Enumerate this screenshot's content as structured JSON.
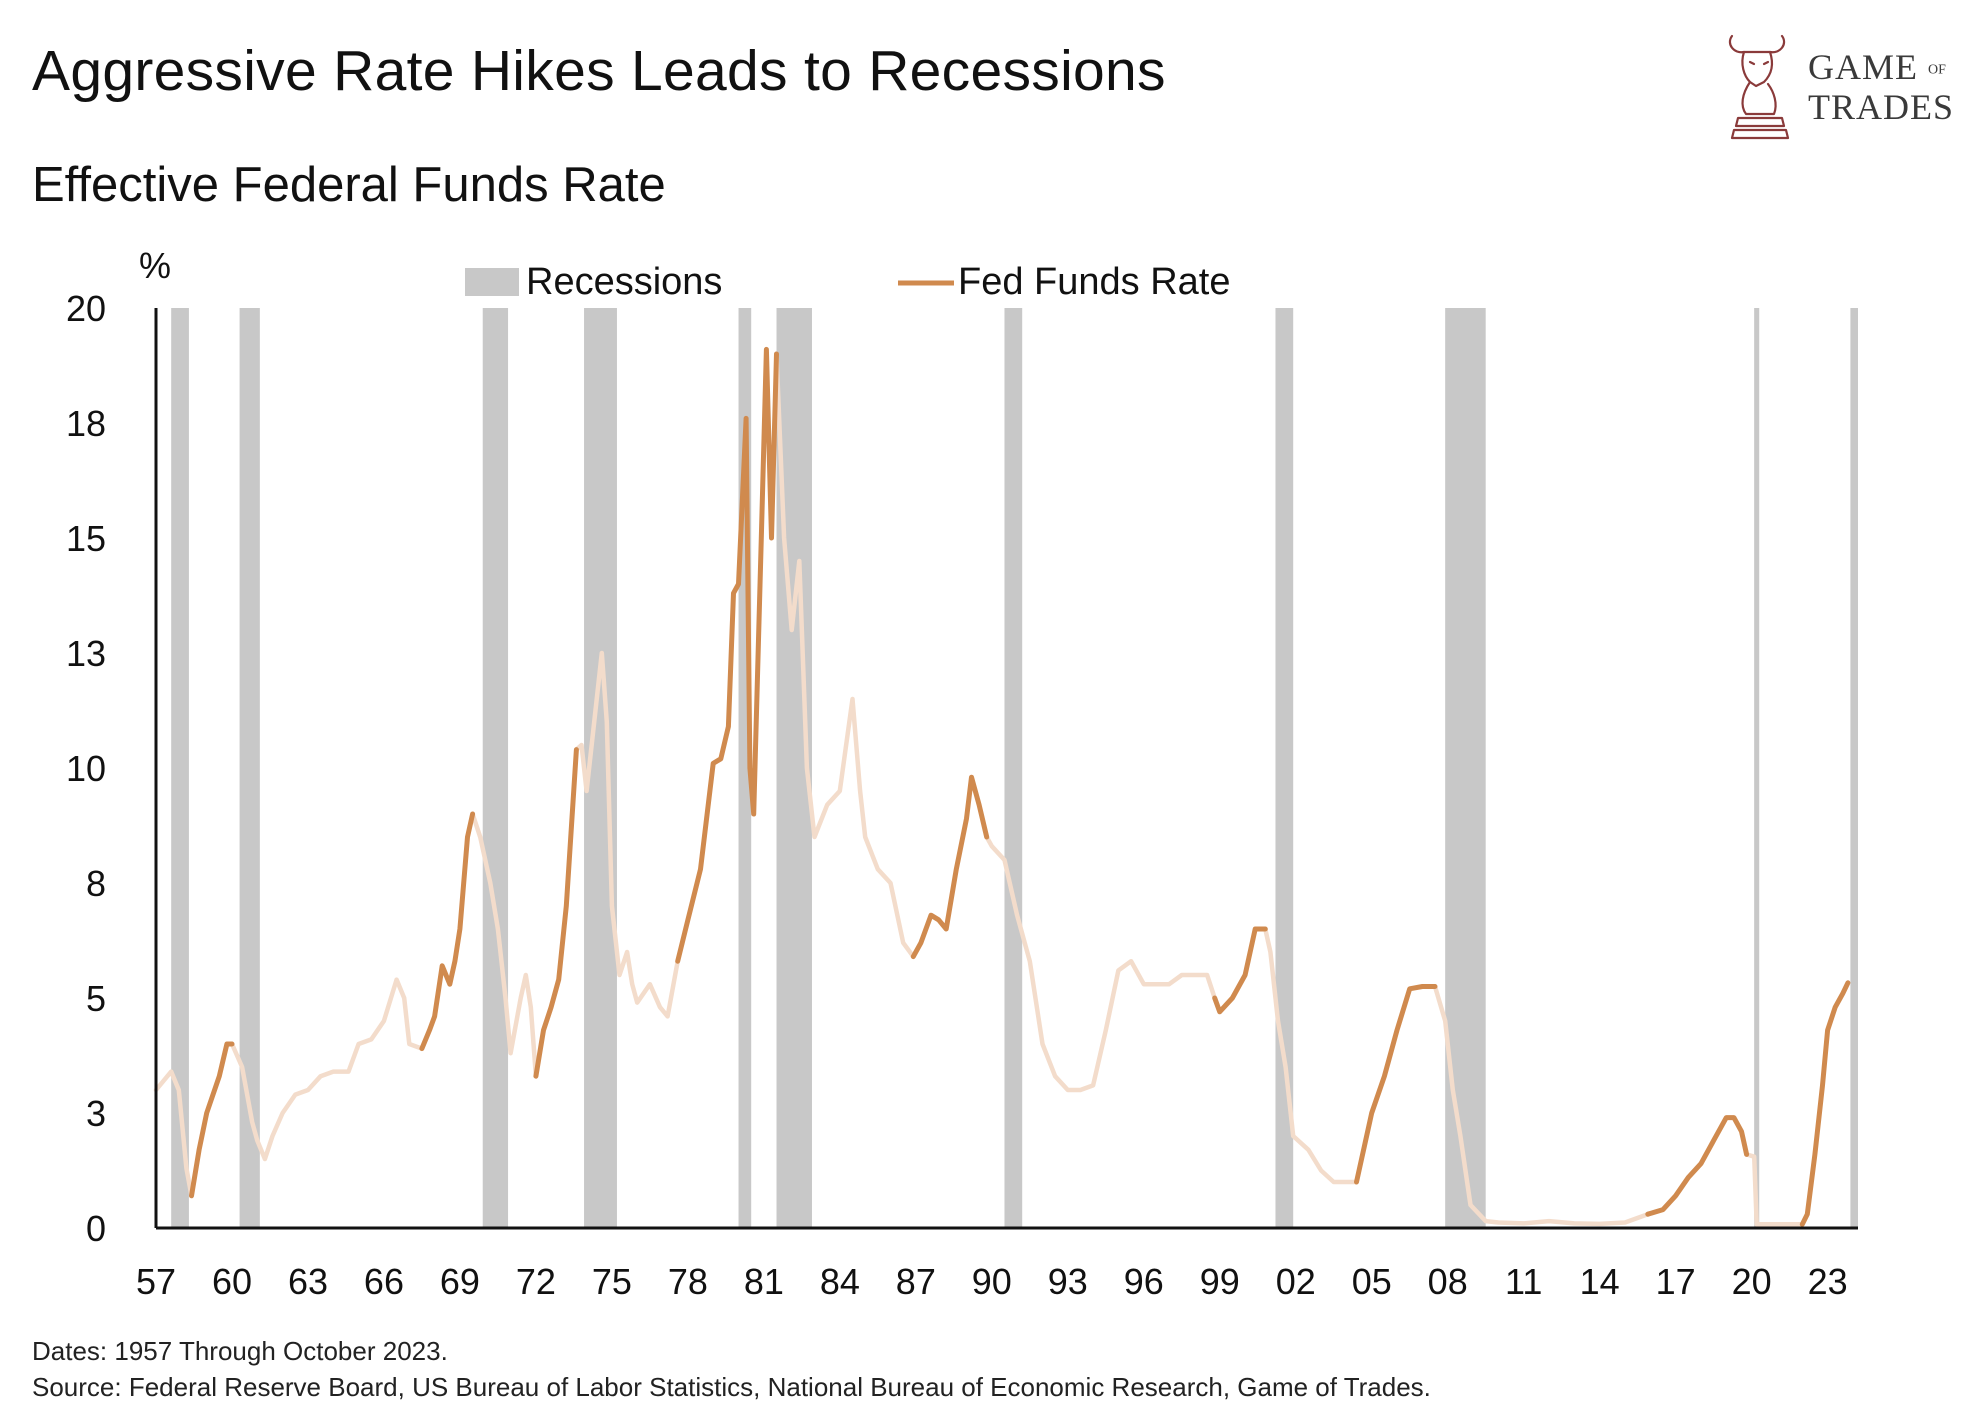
{
  "header": {
    "title": "Aggressive Rate Hikes Leads to Recessions",
    "subtitle": "Effective Federal Funds Rate"
  },
  "logo": {
    "line1": "GAME",
    "line1_small": "OF",
    "line2": "TRADES",
    "icon": "bull-chess-knight-icon",
    "color": "#8a3a3a"
  },
  "footer": {
    "dates_note": "Dates: 1957 Through October 2023.",
    "source_note": "Source: Federal Reserve Board, US Bureau of Labor Statistics, National Bureau of Economic Research, Game of Trades."
  },
  "chart_data": {
    "type": "line",
    "title": "Effective Federal Funds Rate",
    "ylabel": "%",
    "xlabel": "",
    "xlim": [
      1957,
      2024.2
    ],
    "ylim": [
      0,
      20
    ],
    "x_tick_labels": [
      "57",
      "60",
      "63",
      "66",
      "69",
      "72",
      "75",
      "78",
      "81",
      "84",
      "87",
      "90",
      "93",
      "96",
      "99",
      "02",
      "05",
      "08",
      "11",
      "14",
      "17",
      "20",
      "23"
    ],
    "x_tick_values": [
      1957,
      1960,
      1963,
      1966,
      1969,
      1972,
      1975,
      1978,
      1981,
      1984,
      1987,
      1990,
      1993,
      1996,
      1999,
      2002,
      2005,
      2008,
      2011,
      2014,
      2017,
      2020,
      2023
    ],
    "y_tick_labels": [
      "0",
      "3",
      "5",
      "8",
      "10",
      "13",
      "15",
      "18",
      "20"
    ],
    "y_tick_values": [
      0,
      2.5,
      5,
      7.5,
      10,
      12.5,
      15,
      17.5,
      20
    ],
    "grid": false,
    "legend": {
      "placement": "top",
      "entries": [
        {
          "label": "Recessions",
          "type": "band",
          "color": "#c8c8c8"
        },
        {
          "label": "Fed Funds Rate",
          "type": "line",
          "color": "#d08a4e"
        }
      ]
    },
    "colors": {
      "hike": "#d08a4e",
      "other": "#f3dccb",
      "recession": "#c8c8c8"
    },
    "recessions": [
      [
        1957.6,
        1958.3
      ],
      [
        1960.3,
        1961.1
      ],
      [
        1969.9,
        1970.9
      ],
      [
        1973.9,
        1975.2
      ],
      [
        1980.0,
        1980.5
      ],
      [
        1981.5,
        1982.9
      ],
      [
        1990.5,
        1991.2
      ],
      [
        2001.2,
        2001.9
      ],
      [
        2007.9,
        2009.5
      ],
      [
        2020.1,
        2020.3
      ],
      [
        2023.9,
        2024.2
      ]
    ],
    "series": [
      {
        "name": "Fed Funds Rate",
        "points": [
          [
            1957.0,
            3.0
          ],
          [
            1957.6,
            3.4
          ],
          [
            1957.9,
            3.0
          ],
          [
            1958.2,
            1.3
          ],
          [
            1958.4,
            0.7
          ],
          [
            1958.7,
            1.7
          ],
          [
            1959.0,
            2.5
          ],
          [
            1959.5,
            3.3
          ],
          [
            1959.8,
            4.0
          ],
          [
            1960.0,
            4.0
          ],
          [
            1960.4,
            3.5
          ],
          [
            1960.8,
            2.3
          ],
          [
            1961.0,
            1.9
          ],
          [
            1961.3,
            1.5
          ],
          [
            1961.6,
            2.0
          ],
          [
            1962.0,
            2.5
          ],
          [
            1962.5,
            2.9
          ],
          [
            1963.0,
            3.0
          ],
          [
            1963.5,
            3.3
          ],
          [
            1964.0,
            3.4
          ],
          [
            1964.6,
            3.4
          ],
          [
            1965.0,
            4.0
          ],
          [
            1965.5,
            4.1
          ],
          [
            1966.0,
            4.5
          ],
          [
            1966.5,
            5.4
          ],
          [
            1966.8,
            5.0
          ],
          [
            1967.0,
            4.0
          ],
          [
            1967.5,
            3.9
          ],
          [
            1967.8,
            4.3
          ],
          [
            1968.0,
            4.6
          ],
          [
            1968.3,
            5.7
          ],
          [
            1968.6,
            5.3
          ],
          [
            1968.8,
            5.8
          ],
          [
            1969.0,
            6.5
          ],
          [
            1969.3,
            8.5
          ],
          [
            1969.5,
            9.0
          ],
          [
            1969.8,
            8.5
          ],
          [
            1970.2,
            7.5
          ],
          [
            1970.5,
            6.5
          ],
          [
            1970.8,
            5.0
          ],
          [
            1971.0,
            3.8
          ],
          [
            1971.4,
            5.0
          ],
          [
            1971.6,
            5.5
          ],
          [
            1971.8,
            4.8
          ],
          [
            1972.0,
            3.3
          ],
          [
            1972.3,
            4.3
          ],
          [
            1972.6,
            4.8
          ],
          [
            1972.9,
            5.4
          ],
          [
            1973.2,
            7.0
          ],
          [
            1973.6,
            10.4
          ],
          [
            1973.8,
            10.5
          ],
          [
            1974.0,
            9.5
          ],
          [
            1974.3,
            11.0
          ],
          [
            1974.6,
            12.5
          ],
          [
            1974.8,
            11.0
          ],
          [
            1975.0,
            7.0
          ],
          [
            1975.3,
            5.5
          ],
          [
            1975.6,
            6.0
          ],
          [
            1975.8,
            5.3
          ],
          [
            1976.0,
            4.9
          ],
          [
            1976.5,
            5.3
          ],
          [
            1976.9,
            4.8
          ],
          [
            1977.2,
            4.6
          ],
          [
            1977.6,
            5.8
          ],
          [
            1978.0,
            6.7
          ],
          [
            1978.5,
            7.8
          ],
          [
            1979.0,
            10.1
          ],
          [
            1979.3,
            10.2
          ],
          [
            1979.6,
            10.9
          ],
          [
            1979.8,
            13.8
          ],
          [
            1980.0,
            14.0
          ],
          [
            1980.3,
            17.6
          ],
          [
            1980.45,
            10.0
          ],
          [
            1980.6,
            9.0
          ],
          [
            1980.9,
            15.0
          ],
          [
            1981.1,
            19.1
          ],
          [
            1981.3,
            15.0
          ],
          [
            1981.5,
            19.0
          ],
          [
            1981.8,
            15.0
          ],
          [
            1982.1,
            13.0
          ],
          [
            1982.4,
            14.5
          ],
          [
            1982.7,
            10.0
          ],
          [
            1983.0,
            8.5
          ],
          [
            1983.5,
            9.2
          ],
          [
            1984.0,
            9.5
          ],
          [
            1984.5,
            11.5
          ],
          [
            1984.8,
            9.5
          ],
          [
            1985.0,
            8.5
          ],
          [
            1985.5,
            7.8
          ],
          [
            1986.0,
            7.5
          ],
          [
            1986.5,
            6.2
          ],
          [
            1986.9,
            5.9
          ],
          [
            1987.2,
            6.2
          ],
          [
            1987.6,
            6.8
          ],
          [
            1987.9,
            6.7
          ],
          [
            1988.2,
            6.5
          ],
          [
            1988.6,
            7.8
          ],
          [
            1989.0,
            8.9
          ],
          [
            1989.2,
            9.8
          ],
          [
            1989.5,
            9.2
          ],
          [
            1989.8,
            8.5
          ],
          [
            1990.0,
            8.3
          ],
          [
            1990.5,
            8.0
          ],
          [
            1991.0,
            6.8
          ],
          [
            1991.5,
            5.8
          ],
          [
            1992.0,
            4.0
          ],
          [
            1992.5,
            3.3
          ],
          [
            1993.0,
            3.0
          ],
          [
            1993.5,
            3.0
          ],
          [
            1994.0,
            3.1
          ],
          [
            1994.5,
            4.3
          ],
          [
            1995.0,
            5.6
          ],
          [
            1995.5,
            5.8
          ],
          [
            1996.0,
            5.3
          ],
          [
            1996.5,
            5.3
          ],
          [
            1997.0,
            5.3
          ],
          [
            1997.5,
            5.5
          ],
          [
            1998.0,
            5.5
          ],
          [
            1998.5,
            5.5
          ],
          [
            1998.8,
            5.0
          ],
          [
            1999.0,
            4.7
          ],
          [
            1999.5,
            5.0
          ],
          [
            2000.0,
            5.5
          ],
          [
            2000.4,
            6.5
          ],
          [
            2000.8,
            6.5
          ],
          [
            2001.0,
            6.0
          ],
          [
            2001.3,
            4.5
          ],
          [
            2001.6,
            3.5
          ],
          [
            2001.9,
            2.0
          ],
          [
            2002.5,
            1.7
          ],
          [
            2003.0,
            1.25
          ],
          [
            2003.5,
            1.0
          ],
          [
            2004.0,
            1.0
          ],
          [
            2004.4,
            1.0
          ],
          [
            2005.0,
            2.5
          ],
          [
            2005.5,
            3.3
          ],
          [
            2006.0,
            4.3
          ],
          [
            2006.5,
            5.2
          ],
          [
            2007.0,
            5.25
          ],
          [
            2007.5,
            5.25
          ],
          [
            2007.9,
            4.5
          ],
          [
            2008.2,
            3.0
          ],
          [
            2008.5,
            2.0
          ],
          [
            2008.9,
            0.5
          ],
          [
            2009.5,
            0.15
          ],
          [
            2010.0,
            0.12
          ],
          [
            2011.0,
            0.1
          ],
          [
            2012.0,
            0.15
          ],
          [
            2013.0,
            0.1
          ],
          [
            2014.0,
            0.09
          ],
          [
            2015.0,
            0.12
          ],
          [
            2015.9,
            0.3
          ],
          [
            2016.5,
            0.4
          ],
          [
            2017.0,
            0.7
          ],
          [
            2017.5,
            1.1
          ],
          [
            2018.0,
            1.4
          ],
          [
            2018.5,
            1.9
          ],
          [
            2019.0,
            2.4
          ],
          [
            2019.3,
            2.4
          ],
          [
            2019.6,
            2.1
          ],
          [
            2019.8,
            1.6
          ],
          [
            2020.1,
            1.55
          ],
          [
            2020.2,
            0.08
          ],
          [
            2021.0,
            0.08
          ],
          [
            2022.0,
            0.08
          ],
          [
            2022.2,
            0.3
          ],
          [
            2022.5,
            1.6
          ],
          [
            2022.8,
            3.1
          ],
          [
            2023.0,
            4.3
          ],
          [
            2023.3,
            4.8
          ],
          [
            2023.6,
            5.1
          ],
          [
            2023.8,
            5.33
          ]
        ]
      }
    ],
    "hike_periods": [
      [
        1958.4,
        1960.0
      ],
      [
        1967.5,
        1969.5
      ],
      [
        1972.0,
        1973.6
      ],
      [
        1977.6,
        1981.5
      ],
      [
        1986.9,
        1989.8
      ],
      [
        1998.8,
        2000.8
      ],
      [
        2004.4,
        2007.5
      ],
      [
        2015.9,
        2019.8
      ],
      [
        2022.0,
        2023.8
      ]
    ]
  }
}
